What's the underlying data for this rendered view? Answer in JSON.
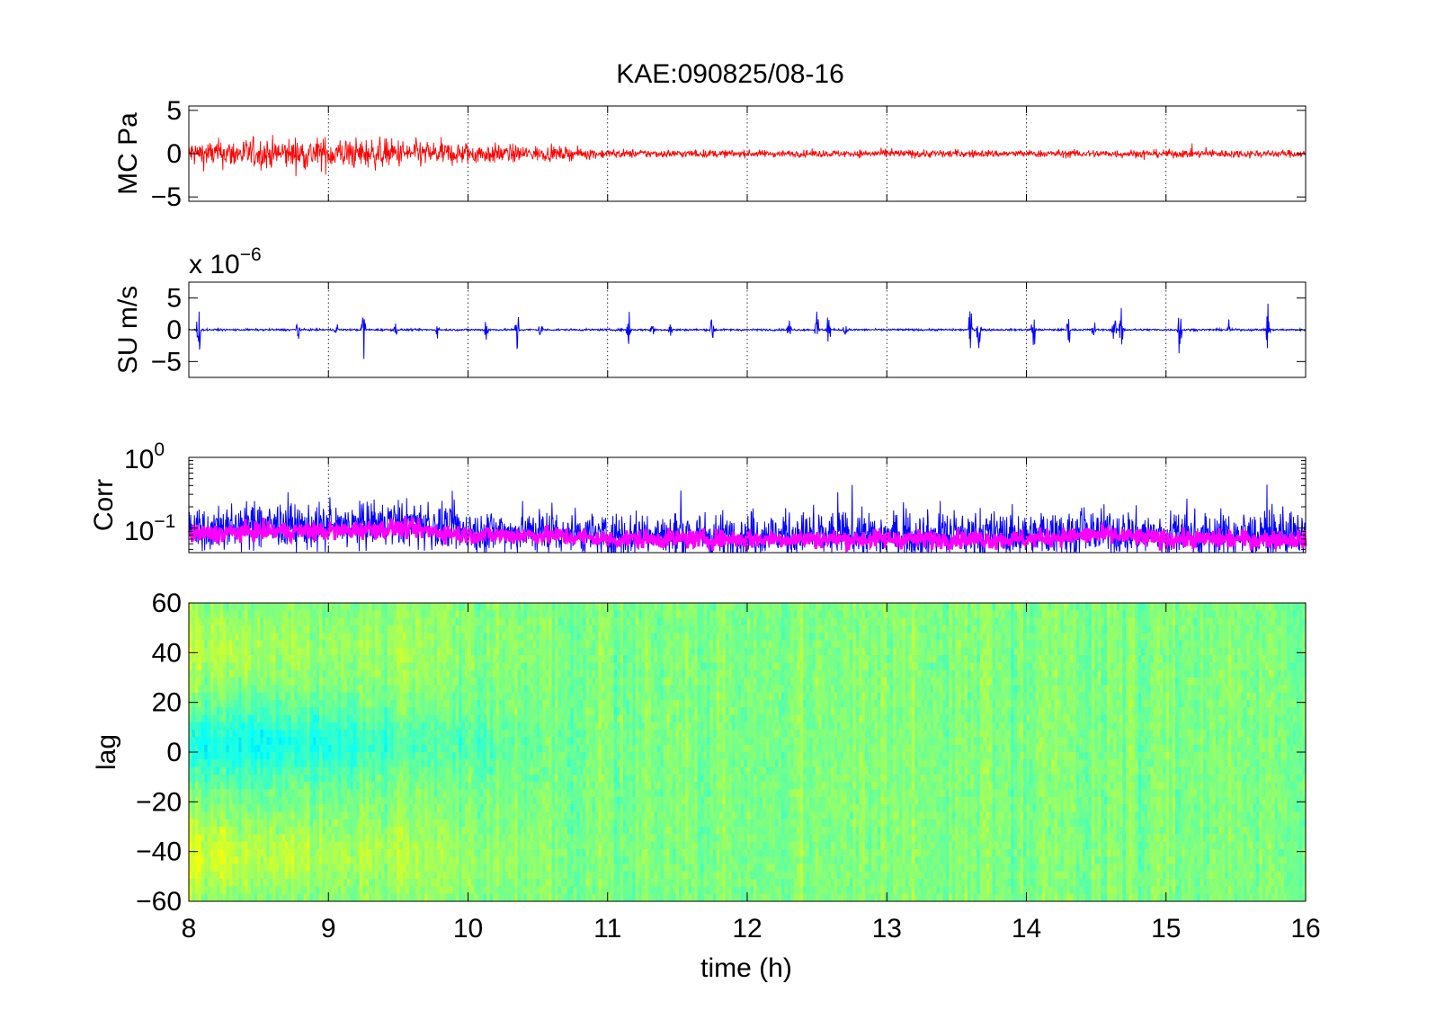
{
  "chart_data": [
    {
      "id": "mc",
      "type": "line",
      "title": "KAE:090825/08-16",
      "ylabel": "MC Pa",
      "xlim": [
        8,
        16
      ],
      "ylim": [
        -5.5,
        5.5
      ],
      "yticks": [
        -5,
        0,
        5
      ],
      "ytick_labels": [
        "−5",
        "0",
        "5"
      ],
      "grid": "x-dotted",
      "color": "#ff0000",
      "envelope": {
        "x": [
          8,
          8.5,
          9,
          9.5,
          10,
          10.5,
          11,
          11.5,
          12,
          12.5,
          13,
          13.5,
          14,
          14.5,
          15,
          15.5,
          16
        ],
        "amp": [
          2.6,
          3.0,
          3.2,
          2.8,
          2.2,
          1.5,
          0.9,
          0.8,
          0.7,
          0.7,
          0.8,
          0.8,
          0.7,
          0.8,
          0.8,
          0.8,
          0.7
        ]
      }
    },
    {
      "id": "su",
      "type": "line",
      "ylabel": "SU m/s",
      "exponent_base": "x 10",
      "exponent_power": "−6",
      "xlim": [
        8,
        16
      ],
      "ylim": [
        -7.5,
        7.5
      ],
      "yticks": [
        -5,
        0,
        5
      ],
      "ytick_labels": [
        "−5",
        "0",
        "5"
      ],
      "grid": "x-dotted",
      "color": "#0000ff",
      "bursts": [
        {
          "t": 8.07,
          "a": 6.0
        },
        {
          "t": 8.78,
          "a": 3.5
        },
        {
          "t": 9.06,
          "a": 1.8
        },
        {
          "t": 9.25,
          "a": 7.0
        },
        {
          "t": 9.48,
          "a": 1.5
        },
        {
          "t": 9.78,
          "a": 1.3
        },
        {
          "t": 10.13,
          "a": 3.5
        },
        {
          "t": 10.35,
          "a": 6.2
        },
        {
          "t": 10.52,
          "a": 2.5
        },
        {
          "t": 11.15,
          "a": 5.5
        },
        {
          "t": 11.32,
          "a": 2.5
        },
        {
          "t": 11.45,
          "a": 2.0
        },
        {
          "t": 11.75,
          "a": 5.0
        },
        {
          "t": 12.3,
          "a": 2.5
        },
        {
          "t": 12.5,
          "a": 4.5
        },
        {
          "t": 12.58,
          "a": 6.0
        },
        {
          "t": 12.7,
          "a": 3.0
        },
        {
          "t": 13.6,
          "a": 5.0
        },
        {
          "t": 13.66,
          "a": 6.0
        },
        {
          "t": 14.05,
          "a": 5.5
        },
        {
          "t": 14.3,
          "a": 3.5
        },
        {
          "t": 14.48,
          "a": 2.5
        },
        {
          "t": 14.63,
          "a": 4.0
        },
        {
          "t": 14.68,
          "a": 6.5
        },
        {
          "t": 15.1,
          "a": 7.0
        },
        {
          "t": 15.45,
          "a": 2.0
        },
        {
          "t": 15.73,
          "a": 6.5
        }
      ]
    },
    {
      "id": "corr",
      "type": "line",
      "ylabel": "Corr",
      "yscale": "log",
      "xlim": [
        8,
        16
      ],
      "ylim": [
        0.045,
        1.0
      ],
      "ytick_label_top": {
        "base": "10",
        "power": "0"
      },
      "ytick_label_mid": {
        "base": "10",
        "power": "−1"
      },
      "grid": "x-dotted",
      "series": [
        {
          "color": "#0000ff",
          "baseline": [
            0.09,
            0.11,
            0.1,
            0.12,
            0.09,
            0.09,
            0.08,
            0.08,
            0.08,
            0.08,
            0.08,
            0.08,
            0.08,
            0.09,
            0.08,
            0.08,
            0.08
          ]
        },
        {
          "color": "#ff00ff",
          "baseline": [
            0.08,
            0.09,
            0.09,
            0.1,
            0.08,
            0.08,
            0.07,
            0.07,
            0.07,
            0.07,
            0.07,
            0.07,
            0.07,
            0.08,
            0.07,
            0.07,
            0.07
          ]
        }
      ]
    },
    {
      "id": "lag",
      "type": "heatmap",
      "ylabel": "lag",
      "xlabel": "time (h)",
      "xlim": [
        8,
        16
      ],
      "ylim": [
        -60,
        60
      ],
      "yticks": [
        -60,
        -40,
        -20,
        0,
        20,
        40,
        60
      ],
      "ytick_labels": [
        "−60",
        "−40",
        "−20",
        "0",
        "20",
        "40",
        "60"
      ],
      "xticks": [
        8,
        9,
        10,
        11,
        12,
        13,
        14,
        15,
        16
      ],
      "xtick_labels": [
        "8",
        "9",
        "10",
        "11",
        "12",
        "13",
        "14",
        "15",
        "16"
      ],
      "colormap": "jet",
      "clim_index": [
        0.3,
        0.75
      ]
    }
  ]
}
